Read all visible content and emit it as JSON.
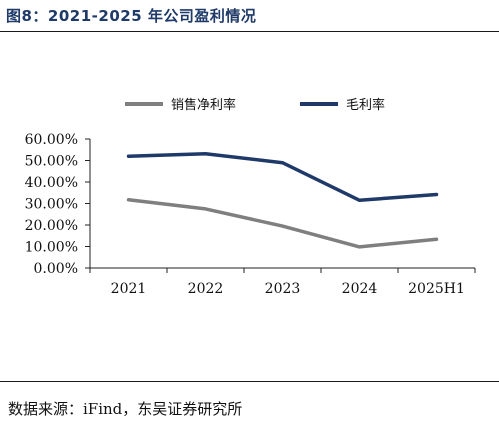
{
  "title": "图8：2021-2025 年公司盈利情况",
  "source": "数据来源：iFind，东吴证券研究所",
  "chart_data": {
    "type": "line",
    "categories": [
      "2021",
      "2022",
      "2023",
      "2024",
      "2025H1"
    ],
    "series": [
      {
        "name": "销售净利率",
        "color": "#7f7f7f",
        "values": [
          31.7,
          27.5,
          19.5,
          9.8,
          13.4
        ]
      },
      {
        "name": "毛利率",
        "color": "#1f3a68",
        "values": [
          52.0,
          53.1,
          49.0,
          31.5,
          34.2
        ]
      }
    ],
    "y_ticks": [
      "0.00%",
      "10.00%",
      "20.00%",
      "30.00%",
      "40.00%",
      "50.00%",
      "60.00%"
    ],
    "ylim": [
      0,
      60
    ],
    "legend_position": "top",
    "grid": false
  }
}
